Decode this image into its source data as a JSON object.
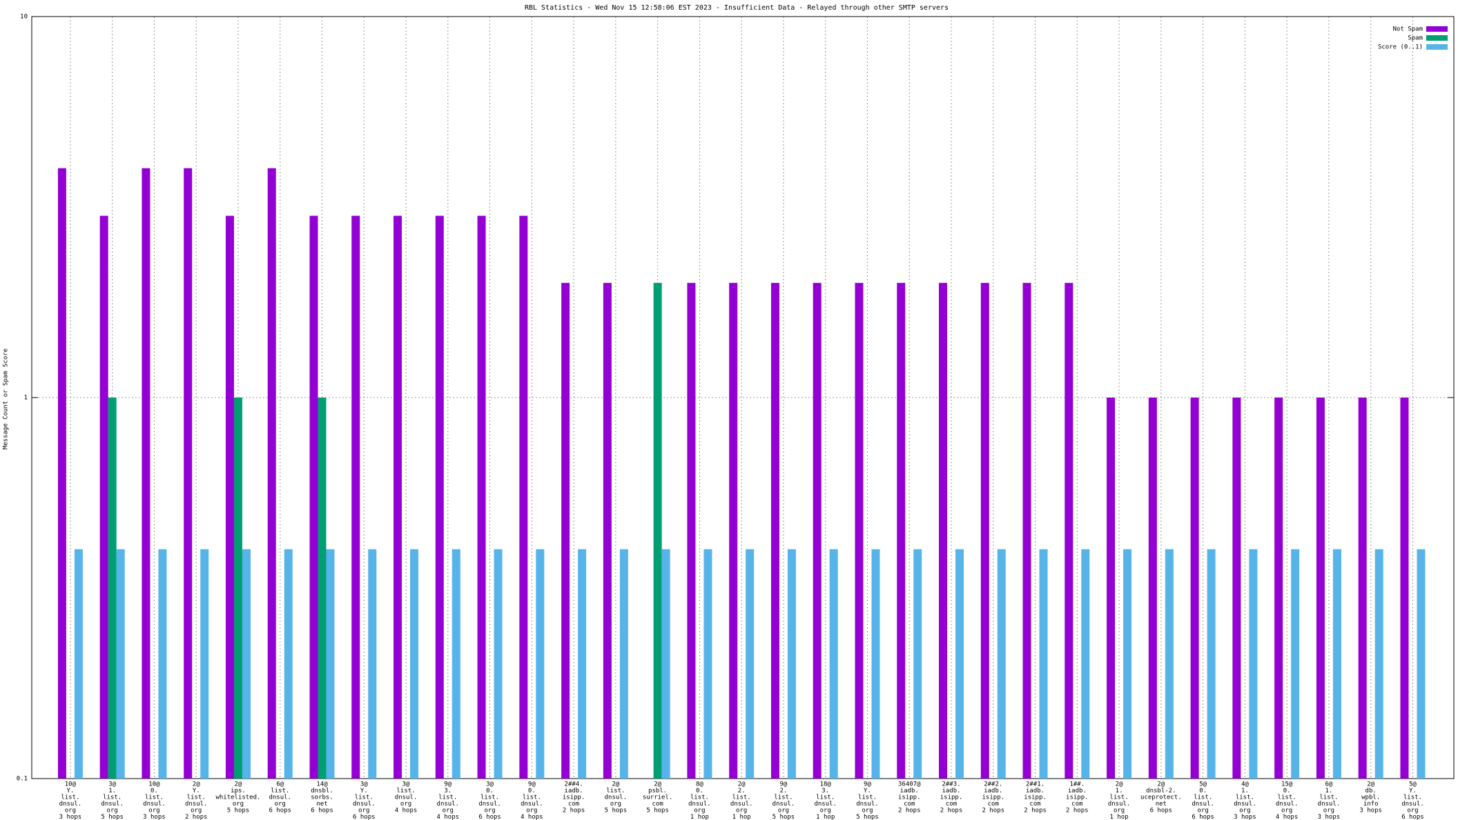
{
  "chart_data": {
    "type": "bar",
    "title": "RBL Statistics - Wed Nov 15 12:58:06 EST 2023 - Insufficient Data - Relayed through other SMTP servers",
    "y_label": "Message Count or Spam Score",
    "log_scale": true,
    "grid": true,
    "legend": "top-right",
    "ylim": [
      0.1,
      10
    ],
    "yticks": [
      0.1,
      1,
      10
    ],
    "categories": [
      [
        "10@",
        "Y.",
        "list.",
        "dnsul.",
        "org",
        "3 hops"
      ],
      [
        "3@",
        "1.",
        "list.",
        "dnsul.",
        "org",
        "5 hops"
      ],
      [
        "10@",
        "0.",
        "list.",
        "dnsul.",
        "org",
        "3 hops"
      ],
      [
        "2@",
        "Y.",
        "list.",
        "dnsul.",
        "org",
        "2 hops"
      ],
      [
        "2@",
        "ips.",
        "whitelisted.",
        "org",
        "5 hops"
      ],
      [
        "6@",
        "list.",
        "dnsul.",
        "org",
        "6 hops"
      ],
      [
        "14@",
        "dnsbl.",
        "sorbs.",
        "net",
        "6 hops"
      ],
      [
        "3@",
        "Y.",
        "list.",
        "dnsul.",
        "org",
        "6 hops"
      ],
      [
        "3@",
        "list.",
        "dnsul.",
        "org",
        "4 hops"
      ],
      [
        "9@",
        "3.",
        "list.",
        "dnsul.",
        "org",
        "4 hops"
      ],
      [
        "3@",
        "0.",
        "list.",
        "dnsul.",
        "org",
        "6 hops"
      ],
      [
        "9@",
        "0.",
        "list.",
        "dnsul.",
        "org",
        "4 hops"
      ],
      [
        "2##4.",
        "iadb.",
        "isipp.",
        "com",
        "2 hops"
      ],
      [
        "2@",
        "list.",
        "dnsul.",
        "org",
        "5 hops"
      ],
      [
        "2@",
        "psbl.",
        "surriel.",
        "com",
        "5 hops"
      ],
      [
        "8@",
        "0.",
        "list.",
        "dnsul.",
        "org",
        "1 hop"
      ],
      [
        "2@",
        "2.",
        "list.",
        "dnsul.",
        "org",
        "1 hop"
      ],
      [
        "9@",
        "2.",
        "list.",
        "dnsul.",
        "org",
        "5 hops"
      ],
      [
        "18@",
        "3.",
        "list.",
        "dnsul.",
        "org",
        "1 hop"
      ],
      [
        "9@",
        "Y.",
        "list.",
        "dnsul.",
        "org",
        "5 hops"
      ],
      [
        "36407@",
        "iadb.",
        "isipp.",
        "com",
        "2 hops"
      ],
      [
        "2##3.",
        "iadb.",
        "isipp.",
        "com",
        "2 hops"
      ],
      [
        "2##2.",
        "iadb.",
        "isipp.",
        "com",
        "2 hops"
      ],
      [
        "2##1.",
        "iadb.",
        "isipp.",
        "com",
        "2 hops"
      ],
      [
        "1##.",
        "iadb.",
        "isipp.",
        "com",
        "2 hops"
      ],
      [
        "2@",
        "1.",
        "list.",
        "dnsul.",
        "org",
        "1 hop"
      ],
      [
        "2@",
        "dnsbl-2.",
        "uceprotect.",
        "net",
        "6 hops"
      ],
      [
        "5@",
        "0.",
        "list.",
        "dnsul.",
        "org",
        "6 hops"
      ],
      [
        "4@",
        "1.",
        "list.",
        "dnsul.",
        "org",
        "3 hops"
      ],
      [
        "15@",
        "0.",
        "list.",
        "dnsul.",
        "org",
        "4 hops"
      ],
      [
        "6@",
        "1.",
        "list.",
        "dnsul.",
        "org",
        "3 hops"
      ],
      [
        "2@",
        "db.",
        "wpbl.",
        "info",
        "3 hops"
      ],
      [
        "5@",
        "Y.",
        "list.",
        "dnsul.",
        "org",
        "6 hops"
      ]
    ],
    "series": [
      {
        "name": "Not Spam",
        "color": "#9400d3",
        "values": [
          4,
          3,
          4,
          4,
          3,
          4,
          3,
          3,
          3,
          3,
          3,
          3,
          2,
          2,
          null,
          2,
          2,
          2,
          2,
          2,
          2,
          2,
          2,
          2,
          2,
          1,
          1,
          1,
          1,
          1,
          1,
          1,
          1
        ]
      },
      {
        "name": "Spam",
        "color": "#009e73",
        "values": [
          null,
          1,
          null,
          null,
          1,
          null,
          1,
          null,
          null,
          null,
          null,
          null,
          null,
          null,
          2,
          null,
          null,
          null,
          null,
          null,
          null,
          null,
          null,
          null,
          null,
          null,
          null,
          null,
          null,
          null,
          null,
          null,
          null
        ]
      },
      {
        "name": "Score (0..1)",
        "color": "#56b4e9",
        "values": [
          0.4,
          0.4,
          0.4,
          0.4,
          0.4,
          0.4,
          0.4,
          0.4,
          0.4,
          0.4,
          0.4,
          0.4,
          0.4,
          0.4,
          0.4,
          0.4,
          0.4,
          0.4,
          0.4,
          0.4,
          0.4,
          0.4,
          0.4,
          0.4,
          0.4,
          0.4,
          0.4,
          0.4,
          0.4,
          0.4,
          0.4,
          0.4,
          0.4
        ]
      }
    ]
  }
}
